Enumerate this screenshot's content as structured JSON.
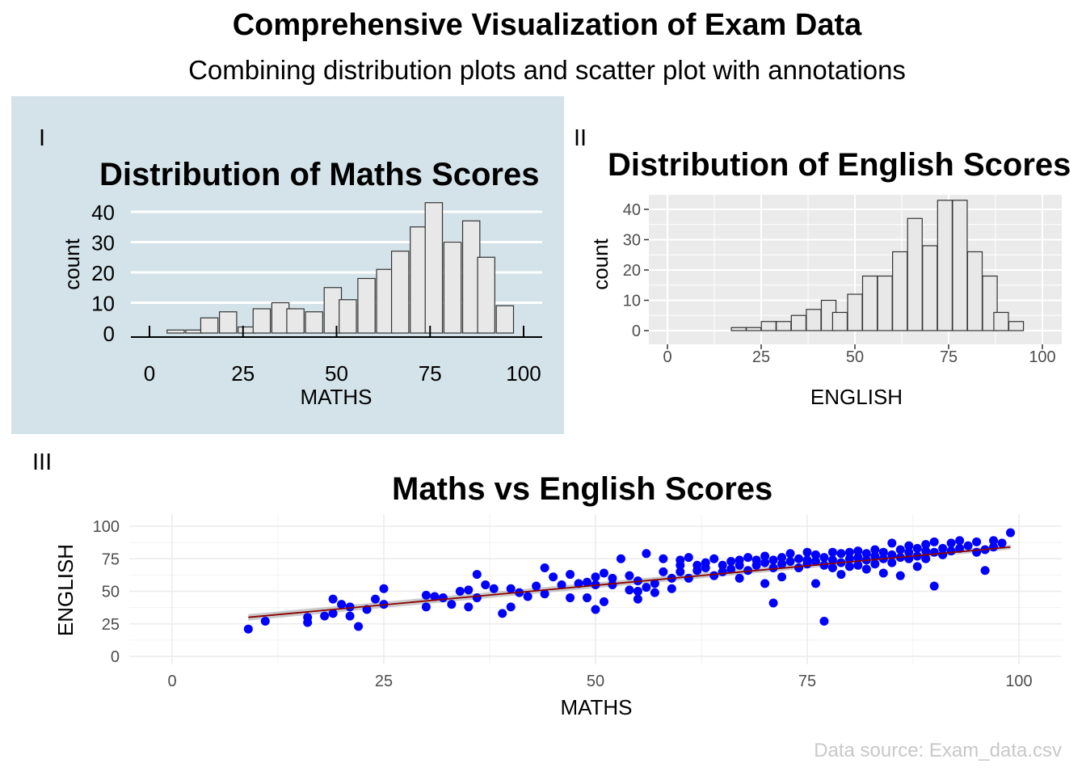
{
  "title": "Comprehensive Visualization of Exam Data",
  "subtitle": "Combining distribution plots and scatter plot with annotations",
  "caption": "Data source: Exam_data.csv",
  "colors": {
    "panel_background": "#d4e3ea",
    "bar_fill": "#e8e8e8",
    "bar_outline": "#333333",
    "point": "#0000ff",
    "trend_line": "#8b0000",
    "gray_panel": "#ebebeb",
    "caption": "#c8c8c8"
  },
  "chart_data": [
    {
      "type": "bar",
      "tag": "I",
      "title": "Distribution of Maths Scores",
      "xlabel": "MATHS",
      "ylabel": "count",
      "xlim": [
        0,
        100
      ],
      "ylim": [
        0,
        44
      ],
      "xticks": [
        0,
        25,
        50,
        75,
        100
      ],
      "yticks": [
        0,
        10,
        20,
        30,
        40
      ],
      "bin_width": 4.6,
      "bins_x": [
        7,
        12,
        16,
        21,
        26,
        30,
        35,
        39,
        44,
        49,
        53,
        58,
        63,
        67,
        72,
        76,
        81,
        86,
        90,
        95
      ],
      "values": [
        1,
        1,
        5,
        7,
        2,
        8,
        10,
        8,
        7,
        15,
        11,
        18,
        21,
        27,
        35,
        43,
        30,
        37,
        25,
        9
      ],
      "grid": "horizontal-major",
      "panel": "light-blue"
    },
    {
      "type": "bar",
      "tag": "II",
      "title": "Distribution of English Scores",
      "xlabel": "ENGLISH",
      "ylabel": "count",
      "xlim": [
        0,
        100
      ],
      "ylim": [
        0,
        44
      ],
      "xticks": [
        0,
        25,
        50,
        75,
        100
      ],
      "yticks": [
        0,
        10,
        20,
        30,
        40
      ],
      "bin_width": 3.9,
      "bins_x": [
        19,
        23,
        27,
        31,
        35,
        39,
        43,
        46,
        50,
        54,
        58,
        62,
        66,
        70,
        74,
        78,
        82,
        86,
        89,
        93
      ],
      "values": [
        1,
        1,
        3,
        3,
        5,
        7,
        10,
        6,
        12,
        18,
        18,
        26,
        37,
        28,
        43,
        43,
        26,
        18,
        6,
        3
      ],
      "grid": "major-minor",
      "panel": "gray"
    },
    {
      "type": "scatter",
      "tag": "III",
      "title": "Maths vs English Scores",
      "xlabel": "MATHS",
      "ylabel": "ENGLISH",
      "xlim": [
        0,
        100
      ],
      "ylim": [
        0,
        100
      ],
      "xticks": [
        0,
        25,
        50,
        75,
        100
      ],
      "yticks": [
        0,
        25,
        50,
        75,
        100
      ],
      "trend": {
        "x": [
          9,
          99
        ],
        "y": [
          30,
          84
        ],
        "color": "#8b0000"
      },
      "points": [
        [
          9,
          21
        ],
        [
          11,
          27
        ],
        [
          16,
          26
        ],
        [
          16,
          30
        ],
        [
          18,
          31
        ],
        [
          19,
          44
        ],
        [
          19,
          33
        ],
        [
          20,
          40
        ],
        [
          21,
          38
        ],
        [
          21,
          31
        ],
        [
          22,
          23
        ],
        [
          23,
          36
        ],
        [
          24,
          44
        ],
        [
          25,
          40
        ],
        [
          25,
          52
        ],
        [
          30,
          47
        ],
        [
          30,
          38
        ],
        [
          31,
          46
        ],
        [
          32,
          45
        ],
        [
          33,
          40
        ],
        [
          34,
          50
        ],
        [
          35,
          51
        ],
        [
          35,
          38
        ],
        [
          36,
          63
        ],
        [
          36,
          45
        ],
        [
          37,
          55
        ],
        [
          38,
          52
        ],
        [
          39,
          33
        ],
        [
          40,
          38
        ],
        [
          40,
          52
        ],
        [
          41,
          49
        ],
        [
          42,
          46
        ],
        [
          43,
          54
        ],
        [
          44,
          68
        ],
        [
          44,
          48
        ],
        [
          45,
          61
        ],
        [
          46,
          55
        ],
        [
          47,
          63
        ],
        [
          47,
          45
        ],
        [
          48,
          56
        ],
        [
          49,
          57
        ],
        [
          49,
          45
        ],
        [
          50,
          55
        ],
        [
          50,
          61
        ],
        [
          50,
          36
        ],
        [
          51,
          64
        ],
        [
          51,
          42
        ],
        [
          52,
          55
        ],
        [
          52,
          60
        ],
        [
          53,
          75
        ],
        [
          54,
          62
        ],
        [
          54,
          51
        ],
        [
          55,
          58
        ],
        [
          55,
          44
        ],
        [
          55,
          50
        ],
        [
          56,
          79
        ],
        [
          56,
          53
        ],
        [
          57,
          49
        ],
        [
          57,
          56
        ],
        [
          58,
          65
        ],
        [
          58,
          75
        ],
        [
          59,
          52
        ],
        [
          59,
          60
        ],
        [
          60,
          65
        ],
        [
          60,
          70
        ],
        [
          60,
          74
        ],
        [
          61,
          76
        ],
        [
          61,
          60
        ],
        [
          62,
          66
        ],
        [
          62,
          70
        ],
        [
          63,
          72
        ],
        [
          63,
          68
        ],
        [
          64,
          62
        ],
        [
          64,
          75
        ],
        [
          65,
          70
        ],
        [
          65,
          65
        ],
        [
          66,
          73
        ],
        [
          66,
          67
        ],
        [
          67,
          74
        ],
        [
          67,
          70
        ],
        [
          67,
          60
        ],
        [
          68,
          76
        ],
        [
          68,
          66
        ],
        [
          69,
          74
        ],
        [
          69,
          70
        ],
        [
          70,
          77
        ],
        [
          70,
          72
        ],
        [
          70,
          56
        ],
        [
          71,
          74
        ],
        [
          71,
          68
        ],
        [
          71,
          41
        ],
        [
          72,
          76
        ],
        [
          72,
          71
        ],
        [
          72,
          61
        ],
        [
          73,
          79
        ],
        [
          73,
          73
        ],
        [
          74,
          75
        ],
        [
          74,
          68
        ],
        [
          75,
          74
        ],
        [
          75,
          80
        ],
        [
          75,
          71
        ],
        [
          76,
          78
        ],
        [
          76,
          73
        ],
        [
          76,
          56
        ],
        [
          77,
          76
        ],
        [
          77,
          70
        ],
        [
          77,
          27
        ],
        [
          78,
          80
        ],
        [
          78,
          74
        ],
        [
          78,
          68
        ],
        [
          79,
          79
        ],
        [
          79,
          72
        ],
        [
          79,
          63
        ],
        [
          80,
          80
        ],
        [
          80,
          75
        ],
        [
          80,
          69
        ],
        [
          81,
          81
        ],
        [
          81,
          76
        ],
        [
          81,
          70
        ],
        [
          82,
          79
        ],
        [
          82,
          74
        ],
        [
          82,
          67
        ],
        [
          83,
          82
        ],
        [
          83,
          77
        ],
        [
          83,
          71
        ],
        [
          84,
          80
        ],
        [
          84,
          75
        ],
        [
          84,
          64
        ],
        [
          85,
          87
        ],
        [
          85,
          78
        ],
        [
          85,
          72
        ],
        [
          86,
          82
        ],
        [
          86,
          76
        ],
        [
          86,
          62
        ],
        [
          87,
          85
        ],
        [
          87,
          80
        ],
        [
          87,
          75
        ],
        [
          88,
          83
        ],
        [
          88,
          77
        ],
        [
          88,
          69
        ],
        [
          89,
          86
        ],
        [
          89,
          81
        ],
        [
          89,
          75
        ],
        [
          90,
          88
        ],
        [
          90,
          80
        ],
        [
          90,
          54
        ],
        [
          91,
          83
        ],
        [
          91,
          78
        ],
        [
          92,
          87
        ],
        [
          92,
          81
        ],
        [
          93,
          89
        ],
        [
          93,
          83
        ],
        [
          94,
          85
        ],
        [
          95,
          88
        ],
        [
          95,
          80
        ],
        [
          96,
          82
        ],
        [
          96,
          66
        ],
        [
          97,
          89
        ],
        [
          97,
          84
        ],
        [
          98,
          87
        ],
        [
          99,
          95
        ]
      ]
    }
  ]
}
